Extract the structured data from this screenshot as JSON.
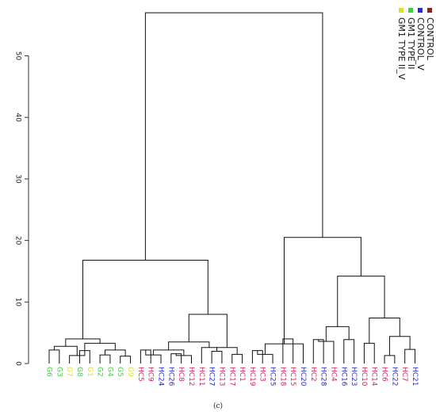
{
  "caption": "(c)",
  "chart_data": {
    "type": "dendrogram",
    "y_axis": {
      "ticks": [
        0,
        10,
        20,
        30,
        40,
        50
      ],
      "ylim": [
        0,
        56.5
      ]
    },
    "legend": {
      "placement": "top-right",
      "entries": [
        {
          "label": "CONTROL",
          "color": "#8b2323"
        },
        {
          "label": "CONTROL_V",
          "color": "#2a2ad6"
        },
        {
          "label": "GM1 TYPE II",
          "color": "#3fcf3f"
        },
        {
          "label": "GM1 TYPE II_V",
          "color": "#e0e020"
        }
      ]
    },
    "leaves": [
      {
        "label": "G6",
        "color": "#3fcf3f"
      },
      {
        "label": "G3",
        "color": "#3fcf3f"
      },
      {
        "label": "G7",
        "color": "#dede30"
      },
      {
        "label": "G8",
        "color": "#3fcf3f"
      },
      {
        "label": "G1",
        "color": "#dede30"
      },
      {
        "label": "G2",
        "color": "#3fcf3f"
      },
      {
        "label": "G4",
        "color": "#3fcf3f"
      },
      {
        "label": "G5",
        "color": "#3fcf3f"
      },
      {
        "label": "G9",
        "color": "#dede30"
      },
      {
        "label": "HC5",
        "color": "#d8245c"
      },
      {
        "label": "HC9",
        "color": "#d8245c"
      },
      {
        "label": "HC24",
        "color": "#2a2ad6"
      },
      {
        "label": "HC26",
        "color": "#2a2ad6"
      },
      {
        "label": "HC8",
        "color": "#d8245c"
      },
      {
        "label": "HC12",
        "color": "#d8245c"
      },
      {
        "label": "HC11",
        "color": "#d8245c"
      },
      {
        "label": "HC27",
        "color": "#2a2ad6"
      },
      {
        "label": "HC13",
        "color": "#d8245c"
      },
      {
        "label": "HC17",
        "color": "#d8245c"
      },
      {
        "label": "HC1",
        "color": "#d8245c"
      },
      {
        "label": "HC19",
        "color": "#d8245c"
      },
      {
        "label": "HC3",
        "color": "#d8245c"
      },
      {
        "label": "HC25",
        "color": "#2a2ad6"
      },
      {
        "label": "HC18",
        "color": "#d8245c"
      },
      {
        "label": "HC15",
        "color": "#d8245c"
      },
      {
        "label": "HC20",
        "color": "#2a2ad6"
      },
      {
        "label": "HC2",
        "color": "#d8245c"
      },
      {
        "label": "HC28",
        "color": "#2a2ad6"
      },
      {
        "label": "HC4",
        "color": "#d8245c"
      },
      {
        "label": "HC16",
        "color": "#2a2ad6"
      },
      {
        "label": "HC23",
        "color": "#2a2ad6"
      },
      {
        "label": "HC10",
        "color": "#d8245c"
      },
      {
        "label": "HC14",
        "color": "#d8245c"
      },
      {
        "label": "HC6",
        "color": "#d8245c"
      },
      {
        "label": "HC22",
        "color": "#2a2ad6"
      },
      {
        "label": "HC7",
        "color": "#d8245c"
      },
      {
        "label": "HC21",
        "color": "#2a2ad6"
      }
    ],
    "merges": [
      {
        "left": 0,
        "right": 1,
        "height": 2.2
      },
      {
        "left": 3,
        "right": 4,
        "height": 2.1
      },
      {
        "left": 5,
        "right": 6,
        "height": 1.4
      },
      {
        "left": 7,
        "right": 8,
        "height": 1.2
      },
      {
        "left": 9,
        "right": 10,
        "height": 2.2
      },
      {
        "left": 12,
        "right": 13,
        "height": 1.6
      },
      {
        "left": -6,
        "right": 14,
        "height": 1.3
      },
      {
        "left": 18,
        "right": 19,
        "height": 1.5
      },
      {
        "left": 20,
        "right": 21,
        "height": 2.1
      },
      {
        "left": -9,
        "right": 22,
        "height": 1.5
      },
      {
        "left": 23,
        "right": 24,
        "height": 4.0
      },
      {
        "left": 26,
        "right": 27,
        "height": 3.9
      },
      {
        "left": 29,
        "right": 30,
        "height": 3.9
      },
      {
        "left": 33,
        "right": 34,
        "height": 1.3
      },
      {
        "left": 35,
        "right": 36,
        "height": 2.3
      },
      {
        "left": -2,
        "right": 2,
        "height": 1.3
      },
      {
        "left": -3,
        "right": -4,
        "height": 2.2
      },
      {
        "left": 11,
        "right": -5,
        "height": 1.4
      },
      {
        "left": 16,
        "right": 17,
        "height": 2.0
      },
      {
        "left": -10,
        "right": 25,
        "height": 3.2
      },
      {
        "left": -12,
        "right": 28,
        "height": 3.6
      },
      {
        "left": 31,
        "right": 32,
        "height": 3.3
      },
      {
        "left": -14,
        "right": -15,
        "height": 4.4
      },
      {
        "left": -1,
        "right": -16,
        "height": 2.8
      },
      {
        "left": -2,
        "right": -17,
        "height": 3.3
      },
      {
        "left": -7,
        "right": -18,
        "height": 2.2
      },
      {
        "left": -8,
        "right": -19,
        "height": 2.6
      },
      {
        "left": 15,
        "right": -19,
        "height": 2.6
      },
      {
        "left": -21,
        "right": -13,
        "height": 6.0
      },
      {
        "left": -22,
        "right": -23,
        "height": 7.4
      },
      {
        "left": -24,
        "right": -25,
        "height": 4.0
      },
      {
        "left": -26,
        "right": -28,
        "height": 3.5
      },
      {
        "left": -27,
        "right": -32,
        "height": 8.0
      },
      {
        "left": -29,
        "right": -30,
        "height": 14.2
      },
      {
        "left": -20,
        "right": -34,
        "height": 20.5
      },
      {
        "left": -31,
        "right": -33,
        "height": 16.8
      },
      {
        "left": -36,
        "right": -35,
        "height": 57.0
      }
    ]
  }
}
